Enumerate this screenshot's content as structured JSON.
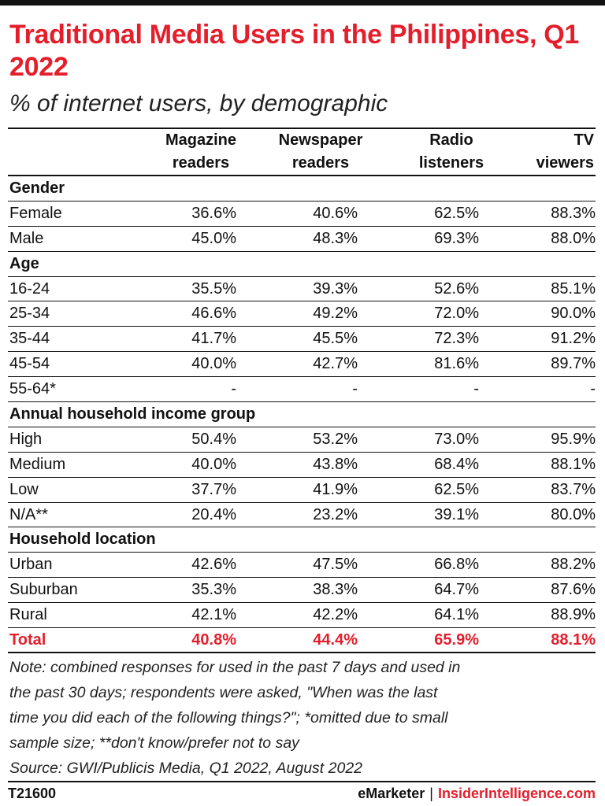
{
  "title": "Traditional Media Users in the Philippines, Q1 2022",
  "subtitle": "% of internet users, by demographic",
  "colors": {
    "accent": "#e41e2b",
    "text": "#111111"
  },
  "chart_data": {
    "type": "table",
    "columns": [
      [
        "Magazine",
        "readers"
      ],
      [
        "Newspaper",
        "readers"
      ],
      [
        "Radio",
        "listeners"
      ],
      [
        "TV",
        "viewers"
      ]
    ],
    "rows": [
      {
        "label": "Gender",
        "group": true
      },
      {
        "label": "Female",
        "values": [
          "36.6%",
          "40.6%",
          "62.5%",
          "88.3%"
        ]
      },
      {
        "label": "Male",
        "values": [
          "45.0%",
          "48.3%",
          "69.3%",
          "88.0%"
        ]
      },
      {
        "label": "Age",
        "group": true
      },
      {
        "label": "16-24",
        "values": [
          "35.5%",
          "39.3%",
          "52.6%",
          "85.1%"
        ]
      },
      {
        "label": "25-34",
        "values": [
          "46.6%",
          "49.2%",
          "72.0%",
          "90.0%"
        ]
      },
      {
        "label": "35-44",
        "values": [
          "41.7%",
          "45.5%",
          "72.3%",
          "91.2%"
        ]
      },
      {
        "label": "45-54",
        "values": [
          "40.0%",
          "42.7%",
          "81.6%",
          "89.7%"
        ]
      },
      {
        "label": "55-64*",
        "values": [
          "-",
          "-",
          "-",
          "-"
        ]
      },
      {
        "label": "Annual household income group",
        "group": true
      },
      {
        "label": "High",
        "values": [
          "50.4%",
          "53.2%",
          "73.0%",
          "95.9%"
        ]
      },
      {
        "label": "Medium",
        "values": [
          "40.0%",
          "43.8%",
          "68.4%",
          "88.1%"
        ]
      },
      {
        "label": "Low",
        "values": [
          "37.7%",
          "41.9%",
          "62.5%",
          "83.7%"
        ]
      },
      {
        "label": "N/A**",
        "values": [
          "20.4%",
          "23.2%",
          "39.1%",
          "80.0%"
        ]
      },
      {
        "label": "Household location",
        "group": true
      },
      {
        "label": "Urban",
        "values": [
          "42.6%",
          "47.5%",
          "66.8%",
          "88.2%"
        ]
      },
      {
        "label": "Suburban",
        "values": [
          "35.3%",
          "38.3%",
          "64.7%",
          "87.6%"
        ]
      },
      {
        "label": "Rural",
        "values": [
          "42.1%",
          "42.2%",
          "64.1%",
          "88.9%"
        ]
      },
      {
        "label": "Total",
        "total": true,
        "values": [
          "40.8%",
          "44.4%",
          "65.9%",
          "88.1%"
        ]
      }
    ]
  },
  "note": [
    "Note: combined responses for used in the past 7 days and used in",
    "the past 30 days; respondents were asked, \"When was the last",
    "time you did each of the following things?\"; *omitted due to small",
    "sample size; **don't know/prefer not to say",
    "Source: GWI/Publicis Media, Q1 2022, August 2022"
  ],
  "footer": {
    "id": "T21600",
    "brand": "eMarketer",
    "separator": "|",
    "site": "InsiderIntelligence.com"
  }
}
